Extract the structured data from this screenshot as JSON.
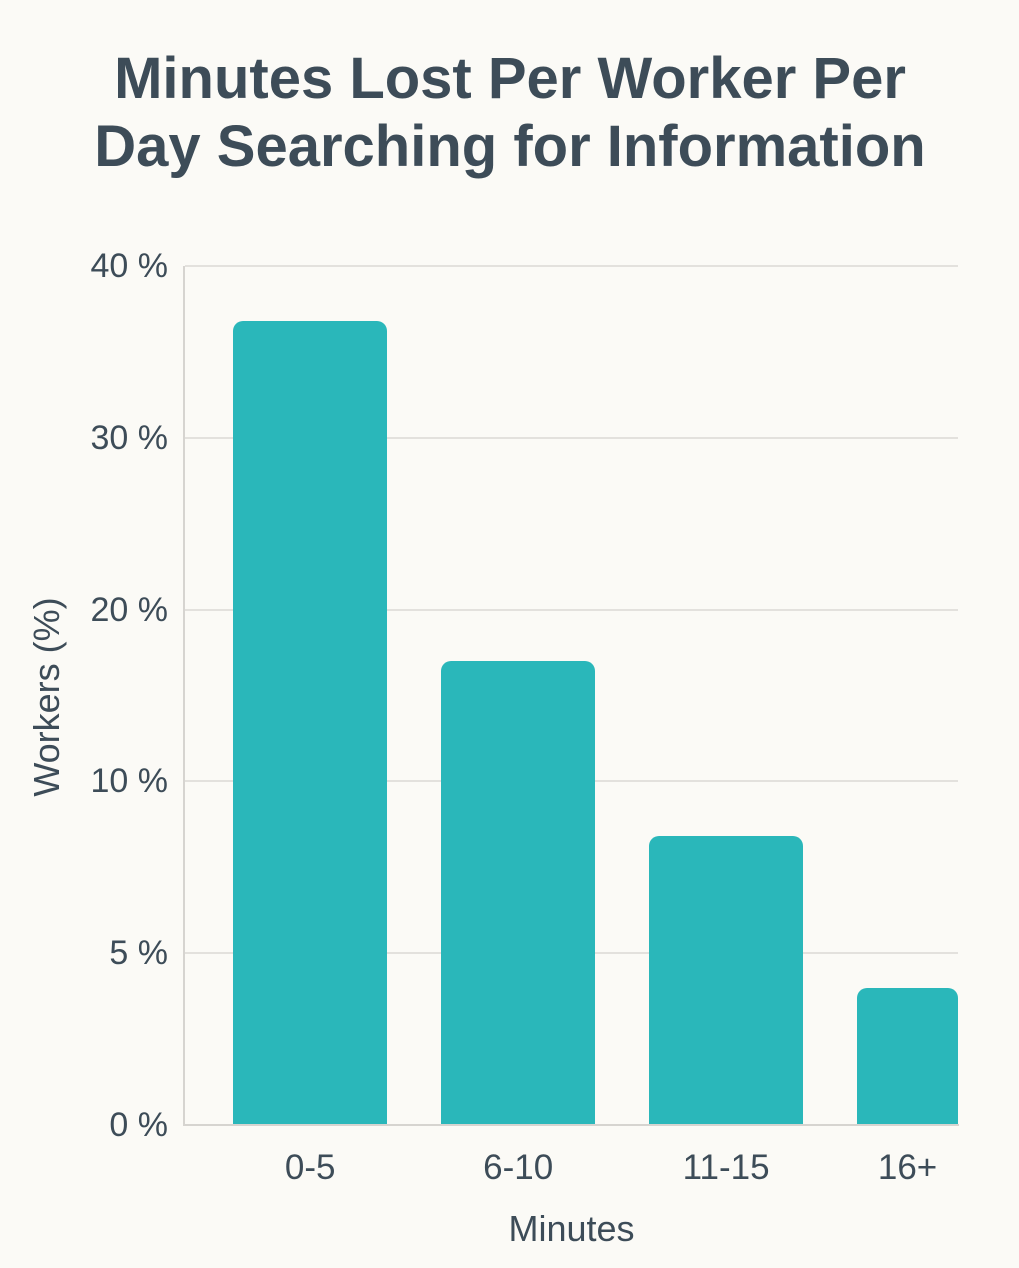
{
  "title_lines": [
    "Minutes Lost Per Worker Per",
    "Day Searching for Information"
  ],
  "chart_data": {
    "type": "bar",
    "title": "Minutes Lost Per Worker Per Day Searching for Information",
    "categories": [
      "0-5",
      "6-10",
      "11-15",
      "16+"
    ],
    "values": [
      36.8,
      17,
      8.4,
      4
    ],
    "xlabel": "Minutes",
    "ylabel": "Workers (%)",
    "y_ticks": [
      0,
      5,
      10,
      20,
      30,
      40
    ],
    "y_tick_labels": [
      "0 %",
      "5 %",
      "10 %",
      "20 %",
      "30 %",
      "40 %"
    ],
    "axis_note": "y-axis tick values are equally spaced (non-linear value axis)",
    "grid": true,
    "legend": false,
    "colors": {
      "bar": "#2ab7ba",
      "text": "#3d4c58",
      "grid": "#e3e1dd",
      "axis": "#d6d4d0",
      "background": "#fbfaf6"
    }
  }
}
